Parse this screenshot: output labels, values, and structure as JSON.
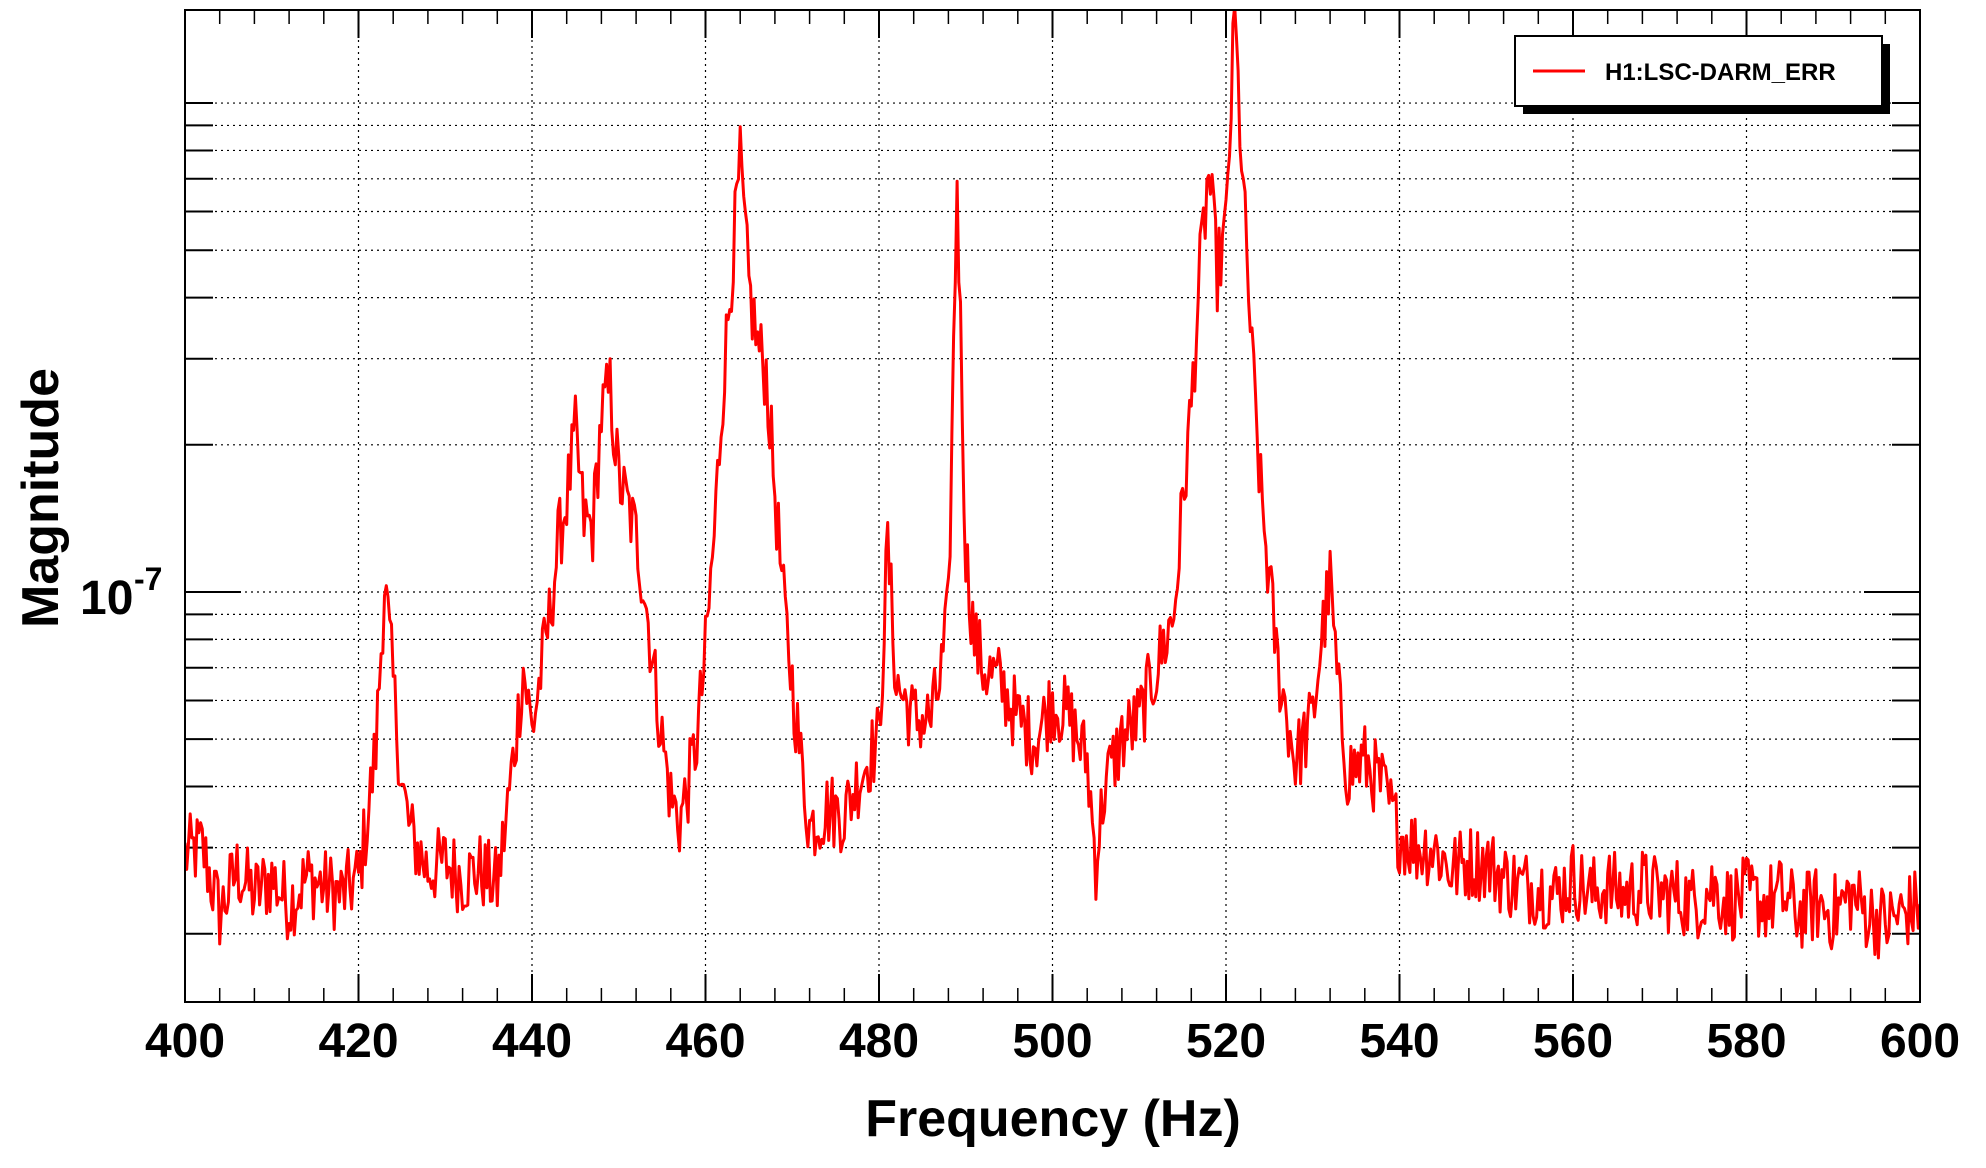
{
  "chart_data": {
    "type": "line",
    "xlabel": "Frequency (Hz)",
    "ylabel": "Magnitude",
    "xlim": [
      400,
      600
    ],
    "ylim": [
      1.45e-08,
      1.55e-06
    ],
    "ylog": true,
    "grid": true,
    "legend_position": "top-right",
    "x_ticks": [
      400,
      420,
      440,
      460,
      480,
      500,
      520,
      540,
      560,
      580,
      600
    ],
    "x_tick_labels": [
      "400",
      "420",
      "440",
      "460",
      "480",
      "500",
      "520",
      "540",
      "560",
      "580",
      "600"
    ],
    "y_major_tick": {
      "value": 1e-07,
      "base": "10",
      "exponent": "-7"
    },
    "y_minor_ticks": [
      2e-08,
      3e-08,
      4e-08,
      5e-08,
      6e-08,
      7e-08,
      8e-08,
      9e-08,
      2e-07,
      3e-07,
      4e-07,
      5e-07,
      6e-07,
      7e-07,
      8e-07,
      9e-07,
      1e-06
    ],
    "series": [
      {
        "name": "H1:LSC-DARM_ERR",
        "color": "#ff0000",
        "x": [
          400,
          402,
          404,
          406,
          408,
          410,
          412,
          414,
          416,
          418,
          420,
          421,
          422,
          423,
          424,
          425,
          426,
          428,
          430,
          432,
          434,
          436,
          437,
          438,
          439,
          440,
          441,
          442,
          443,
          444,
          445,
          446,
          447,
          448,
          449,
          450,
          451,
          452,
          453,
          454,
          455,
          456,
          457,
          458,
          459,
          460,
          461,
          462,
          463,
          464,
          465,
          466,
          467,
          468,
          469,
          470,
          471,
          472,
          474,
          476,
          478,
          480,
          481,
          482,
          484,
          486,
          487,
          488,
          489,
          490,
          491,
          492,
          494,
          496,
          498,
          500,
          502,
          504,
          505,
          506,
          508,
          510,
          512,
          514,
          515,
          516,
          517,
          518,
          519,
          520,
          521,
          522,
          523,
          524,
          525,
          526,
          528,
          530,
          531,
          532,
          533,
          534,
          536,
          538,
          540,
          542,
          544,
          546,
          548,
          550,
          552,
          554,
          556,
          558,
          560,
          562,
          564,
          566,
          568,
          570,
          572,
          574,
          576,
          578,
          580,
          582,
          584,
          586,
          588,
          590,
          592,
          594,
          596,
          598,
          600
        ],
        "values": [
          2.9e-08,
          3e-08,
          2.2e-08,
          2.7e-08,
          2.4e-08,
          2.6e-08,
          2.3e-08,
          2.6e-08,
          2.5e-08,
          2.4e-08,
          2.6e-08,
          3.4e-08,
          4.8e-08,
          1.05e-07,
          6.5e-08,
          4e-08,
          3.2e-08,
          2.7e-08,
          2.8e-08,
          2.6e-08,
          2.7e-08,
          2.5e-08,
          3.4e-08,
          4.8e-08,
          7e-08,
          5.2e-08,
          6.8e-08,
          8.8e-08,
          1.25e-07,
          1.55e-07,
          2.1e-07,
          1.4e-07,
          1.35e-07,
          2.3e-07,
          2.6e-07,
          1.7e-07,
          1.5e-07,
          1.3e-07,
          1e-07,
          7e-08,
          5e-08,
          3.8e-08,
          3.4e-08,
          4e-08,
          5e-08,
          7.5e-08,
          1.3e-07,
          2.6e-07,
          4.5e-07,
          7.5e-07,
          4.2e-07,
          3.2e-07,
          2.8e-07,
          1.6e-07,
          9.5e-08,
          6.5e-08,
          4.5e-08,
          3.3e-08,
          3.6e-08,
          3.5e-08,
          4.3e-08,
          5e-08,
          1.25e-07,
          6.5e-08,
          5.5e-08,
          5.5e-08,
          6.5e-08,
          9e-08,
          7e-07,
          1.2e-07,
          8e-08,
          7e-08,
          6.5e-08,
          5.5e-08,
          5e-08,
          6e-08,
          5.5e-08,
          4.5e-08,
          2.8e-08,
          4e-08,
          5e-08,
          5.5e-08,
          7e-08,
          9e-08,
          1.5e-07,
          2.4e-07,
          4.5e-07,
          7.2e-07,
          4.5e-07,
          5.5e-07,
          1.5e-06,
          6.5e-07,
          3e-07,
          1.6e-07,
          1.05e-07,
          7e-08,
          4.5e-08,
          5.5e-08,
          8e-08,
          1.05e-07,
          6e-08,
          4.3e-08,
          4.5e-08,
          4e-08,
          3.2e-08,
          3e-08,
          3e-08,
          2.7e-08,
          2.8e-08,
          2.8e-08,
          2.6e-08,
          2.5e-08,
          2.5e-08,
          2.4e-08,
          2.6e-08,
          2.4e-08,
          2.5e-08,
          2.4e-08,
          2.5e-08,
          2.4e-08,
          2.4e-08,
          2.3e-08,
          2.5e-08,
          2.3e-08,
          2.4e-08,
          2.3e-08,
          2.4e-08,
          2.2e-08,
          2.3e-08,
          2.2e-08,
          2.4e-08,
          2.2e-08,
          2.1e-08,
          2.2e-08,
          2.3e-08
        ]
      }
    ]
  }
}
